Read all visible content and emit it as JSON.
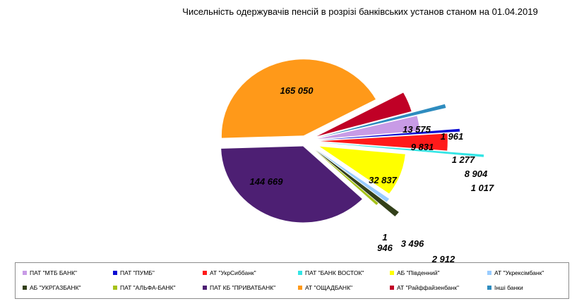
{
  "chart_data": {
    "type": "pie",
    "title": "Чисельність одержувачів пенсій в розрізі банківських установ станом на 01.04.2019",
    "slices": [
      {
        "name": "ПАТ \"МТБ БАНК\"",
        "value": 9831,
        "label": "9 831",
        "color": "#c89be6"
      },
      {
        "name": "ПАТ \"ПУМБ\"",
        "value": 1277,
        "label": "1 277",
        "color": "#0a0ad2"
      },
      {
        "name": "АТ \"УкрСиббанк\"",
        "value": 8904,
        "label": "8 904",
        "color": "#ff1a1a"
      },
      {
        "name": "ПАТ \"БАНК ВОСТОК\"",
        "value": 1017,
        "label": "1 017",
        "color": "#33e5e5"
      },
      {
        "name": "АБ \"Південний\"",
        "value": 32837,
        "label": "32 837",
        "color": "#ffff00"
      },
      {
        "name": "АТ \"Укрексімбанк\"",
        "value": 2912,
        "label": "2 912",
        "color": "#99ccff"
      },
      {
        "name": "АБ \"УКРГАЗБАНК\"",
        "value": 3496,
        "label": "3 496",
        "color": "#33401a"
      },
      {
        "name": "ПАТ \"АЛЬФА-БАНК\"",
        "value": 1946,
        "label": "1\n946",
        "color": "#a6c21a"
      },
      {
        "name": "ПАТ КБ \"ПРИВАТБАНК\"",
        "value": 144669,
        "label": "144 669",
        "color": "#4d1f73"
      },
      {
        "name": "АТ \"ОЩАДБАНК\"",
        "value": 165050,
        "label": "165 050",
        "color": "#ff9919"
      },
      {
        "name": "АТ \"Райффайзенбанк\"",
        "value": 13575,
        "label": "13 575",
        "color": "#c00026"
      },
      {
        "name": "Інші банки",
        "value": 1961,
        "label": "1 961",
        "color": "#2e8cbf"
      }
    ],
    "legend": "bottom"
  }
}
